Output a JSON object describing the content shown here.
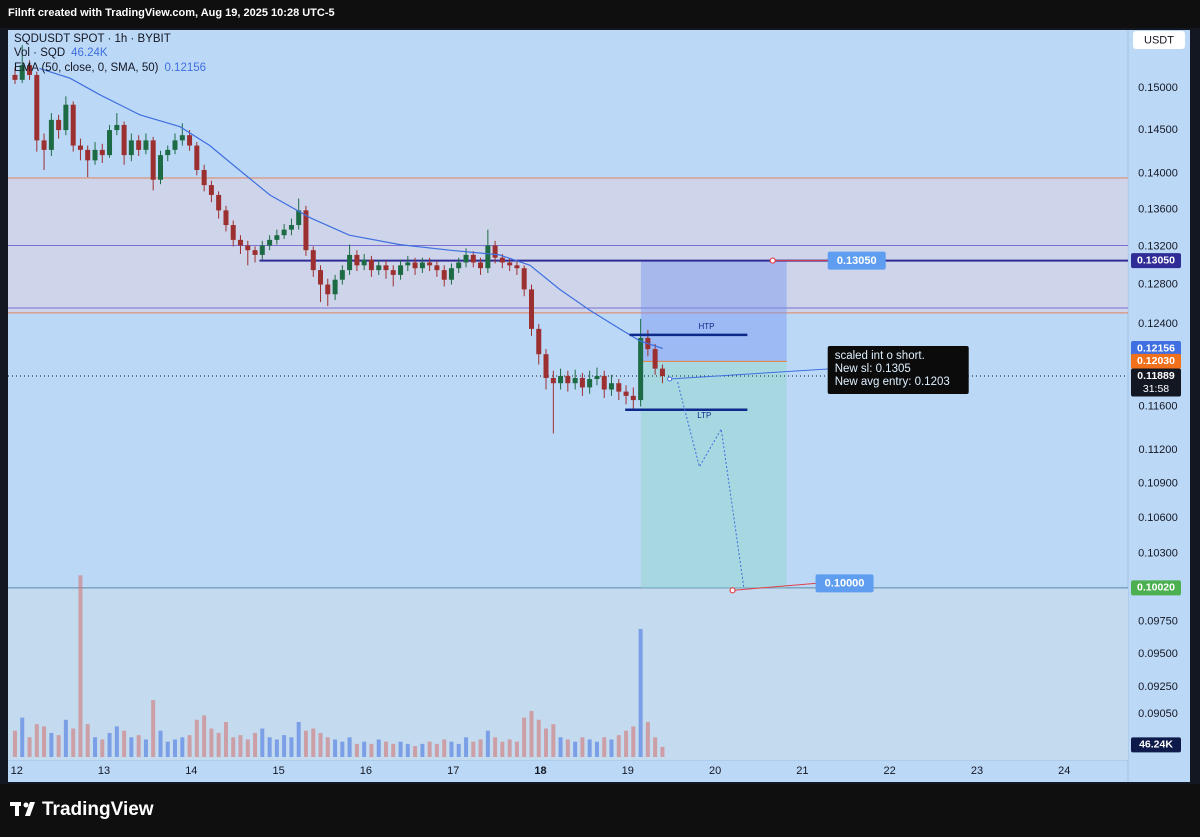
{
  "header": {
    "text": "Filnft created with TradingView.com, Aug 19, 2025 10:28 UTC-5"
  },
  "footer": {
    "brand": "TradingView"
  },
  "chart_data": {
    "type": "candlestick",
    "symbol": "SQDUSDT SPOT · 1h · BYBIT",
    "currency": "USDT",
    "log_scale": true,
    "grid": false,
    "up_color": "#1d6b45",
    "down_color": "#9c2f2f",
    "xlim": [
      11.9,
      24.73
    ],
    "xticks": [
      12,
      13,
      14,
      15,
      16,
      17,
      18,
      19,
      20,
      21,
      22,
      23,
      24
    ],
    "emphasized_xtick": 18,
    "ylim": [
      0.0872,
      0.1572
    ],
    "yticks": [
      {
        "value": 0.15,
        "label": "0.15000"
      },
      {
        "value": 0.145,
        "label": "0.14500"
      },
      {
        "value": 0.14,
        "label": "0.14000"
      },
      {
        "value": 0.136,
        "label": "0.13600"
      },
      {
        "value": 0.132,
        "label": "0.13200"
      },
      {
        "value": 0.128,
        "label": "0.12800"
      },
      {
        "value": 0.124,
        "label": "0.12400"
      },
      {
        "value": 0.116,
        "label": "0.11600"
      },
      {
        "value": 0.112,
        "label": "0.11200"
      },
      {
        "value": 0.109,
        "label": "0.10900"
      },
      {
        "value": 0.106,
        "label": "0.10600"
      },
      {
        "value": 0.103,
        "label": "0.10300"
      },
      {
        "value": 0.0975,
        "label": "0.09750"
      },
      {
        "value": 0.095,
        "label": "0.09500"
      },
      {
        "value": 0.0925,
        "label": "0.09250"
      },
      {
        "value": 0.0905,
        "label": "0.09050"
      }
    ],
    "x": [
      11.98,
      12.063,
      12.147,
      12.23,
      12.313,
      12.397,
      12.48,
      12.563,
      12.647,
      12.73,
      12.813,
      12.897,
      12.98,
      13.063,
      13.147,
      13.23,
      13.313,
      13.397,
      13.48,
      13.563,
      13.647,
      13.73,
      13.813,
      13.897,
      13.98,
      14.063,
      14.147,
      14.23,
      14.313,
      14.397,
      14.48,
      14.563,
      14.647,
      14.73,
      14.813,
      14.897,
      14.98,
      15.063,
      15.147,
      15.23,
      15.313,
      15.397,
      15.48,
      15.563,
      15.647,
      15.73,
      15.813,
      15.897,
      15.98,
      16.063,
      16.147,
      16.23,
      16.313,
      16.397,
      16.48,
      16.563,
      16.647,
      16.73,
      16.813,
      16.897,
      16.98,
      17.063,
      17.147,
      17.23,
      17.313,
      17.397,
      17.48,
      17.563,
      17.647,
      17.73,
      17.813,
      17.897,
      17.98,
      18.063,
      18.147,
      18.23,
      18.313,
      18.397,
      18.48,
      18.563,
      18.647,
      18.73,
      18.813,
      18.897,
      18.98,
      19.063,
      19.147,
      19.23,
      19.313,
      19.397
    ],
    "ohlc": [
      [
        0.1516,
        0.1525,
        0.1505,
        0.151
      ],
      [
        0.151,
        0.1553,
        0.1506,
        0.1528
      ],
      [
        0.1528,
        0.1534,
        0.151,
        0.1516
      ],
      [
        0.1516,
        0.152,
        0.1425,
        0.1438
      ],
      [
        0.1438,
        0.1446,
        0.1404,
        0.1427
      ],
      [
        0.1427,
        0.147,
        0.142,
        0.1462
      ],
      [
        0.1462,
        0.1468,
        0.144,
        0.145
      ],
      [
        0.145,
        0.149,
        0.1444,
        0.148
      ],
      [
        0.148,
        0.1484,
        0.1425,
        0.1432
      ],
      [
        0.1432,
        0.144,
        0.1415,
        0.1427
      ],
      [
        0.1427,
        0.1432,
        0.1396,
        0.1415
      ],
      [
        0.1415,
        0.1436,
        0.141,
        0.1427
      ],
      [
        0.1427,
        0.1434,
        0.1412,
        0.1421
      ],
      [
        0.1421,
        0.1456,
        0.1418,
        0.145
      ],
      [
        0.145,
        0.147,
        0.1444,
        0.1456
      ],
      [
        0.1456,
        0.146,
        0.141,
        0.1421
      ],
      [
        0.1421,
        0.1446,
        0.1414,
        0.1438
      ],
      [
        0.1438,
        0.1444,
        0.142,
        0.1427
      ],
      [
        0.1427,
        0.1446,
        0.1422,
        0.1438
      ],
      [
        0.1438,
        0.1442,
        0.1381,
        0.1393
      ],
      [
        0.1393,
        0.1426,
        0.1388,
        0.1421
      ],
      [
        0.1421,
        0.1432,
        0.1414,
        0.1427
      ],
      [
        0.1427,
        0.1446,
        0.1422,
        0.1438
      ],
      [
        0.1438,
        0.1458,
        0.1432,
        0.1444
      ],
      [
        0.1444,
        0.145,
        0.1426,
        0.1432
      ],
      [
        0.1432,
        0.1436,
        0.1398,
        0.1404
      ],
      [
        0.1404,
        0.141,
        0.138,
        0.1387
      ],
      [
        0.1387,
        0.1392,
        0.1368,
        0.1376
      ],
      [
        0.1376,
        0.138,
        0.135,
        0.1359
      ],
      [
        0.1359,
        0.1364,
        0.1336,
        0.1343
      ],
      [
        0.1343,
        0.1348,
        0.132,
        0.1327
      ],
      [
        0.1327,
        0.1332,
        0.1312,
        0.1321
      ],
      [
        0.1321,
        0.1326,
        0.13,
        0.1316
      ],
      [
        0.1316,
        0.132,
        0.1303,
        0.1311
      ],
      [
        0.1311,
        0.1326,
        0.1306,
        0.1321
      ],
      [
        0.1321,
        0.1332,
        0.1316,
        0.1327
      ],
      [
        0.1327,
        0.1338,
        0.1322,
        0.1332
      ],
      [
        0.1332,
        0.1344,
        0.1328,
        0.1338
      ],
      [
        0.1338,
        0.135,
        0.1332,
        0.1343
      ],
      [
        0.1343,
        0.1372,
        0.1338,
        0.1359
      ],
      [
        0.1359,
        0.1364,
        0.131,
        0.1316
      ],
      [
        0.1316,
        0.132,
        0.1288,
        0.1295
      ],
      [
        0.1295,
        0.13,
        0.1262,
        0.128
      ],
      [
        0.128,
        0.1286,
        0.1258,
        0.127
      ],
      [
        0.127,
        0.129,
        0.1264,
        0.1285
      ],
      [
        0.1285,
        0.13,
        0.128,
        0.1295
      ],
      [
        0.1295,
        0.1322,
        0.129,
        0.1311
      ],
      [
        0.1311,
        0.1316,
        0.1294,
        0.13
      ],
      [
        0.13,
        0.1312,
        0.1295,
        0.1306
      ],
      [
        0.1306,
        0.131,
        0.1288,
        0.1295
      ],
      [
        0.1295,
        0.1306,
        0.129,
        0.13
      ],
      [
        0.13,
        0.1305,
        0.1286,
        0.1295
      ],
      [
        0.1295,
        0.13,
        0.1278,
        0.129
      ],
      [
        0.129,
        0.1306,
        0.1285,
        0.13
      ],
      [
        0.13,
        0.131,
        0.1294,
        0.1303
      ],
      [
        0.1303,
        0.1308,
        0.129,
        0.1297
      ],
      [
        0.1297,
        0.1308,
        0.1292,
        0.1303
      ],
      [
        0.1303,
        0.1308,
        0.1294,
        0.13
      ],
      [
        0.13,
        0.1305,
        0.1288,
        0.1295
      ],
      [
        0.1295,
        0.13,
        0.1278,
        0.1285
      ],
      [
        0.1285,
        0.1302,
        0.128,
        0.1297
      ],
      [
        0.1297,
        0.1308,
        0.1292,
        0.1303
      ],
      [
        0.1303,
        0.1318,
        0.1298,
        0.1311
      ],
      [
        0.1311,
        0.1315,
        0.1298,
        0.1303
      ],
      [
        0.1303,
        0.1308,
        0.129,
        0.1297
      ],
      [
        0.1297,
        0.1338,
        0.1292,
        0.1321
      ],
      [
        0.1321,
        0.1326,
        0.1302,
        0.1308
      ],
      [
        0.1308,
        0.1312,
        0.1297,
        0.1303
      ],
      [
        0.1303,
        0.1308,
        0.1294,
        0.13
      ],
      [
        0.13,
        0.1305,
        0.129,
        0.1297
      ],
      [
        0.1297,
        0.13,
        0.1268,
        0.1275
      ],
      [
        0.1275,
        0.128,
        0.1228,
        0.1235
      ],
      [
        0.1235,
        0.124,
        0.12,
        0.121
      ],
      [
        0.121,
        0.1215,
        0.1176,
        0.1187
      ],
      [
        0.1187,
        0.1194,
        0.1135,
        0.1182
      ],
      [
        0.1182,
        0.1196,
        0.1176,
        0.1189
      ],
      [
        0.1189,
        0.1194,
        0.1174,
        0.1182
      ],
      [
        0.1182,
        0.1195,
        0.1176,
        0.1187
      ],
      [
        0.1187,
        0.1192,
        0.117,
        0.1178
      ],
      [
        0.1178,
        0.1194,
        0.1172,
        0.1186
      ],
      [
        0.1186,
        0.1197,
        0.118,
        0.1189
      ],
      [
        0.1189,
        0.1194,
        0.1168,
        0.1176
      ],
      [
        0.1176,
        0.119,
        0.117,
        0.1182
      ],
      [
        0.1182,
        0.1186,
        0.1166,
        0.1174
      ],
      [
        0.1174,
        0.118,
        0.1162,
        0.117
      ],
      [
        0.117,
        0.1178,
        0.1158,
        0.1166
      ],
      [
        0.1166,
        0.1245,
        0.116,
        0.1226
      ],
      [
        0.1226,
        0.1234,
        0.1208,
        0.1215
      ],
      [
        0.1215,
        0.122,
        0.119,
        0.1196
      ],
      [
        0.1196,
        0.12,
        0.1182,
        0.11889
      ]
    ],
    "ema": {
      "name": "EMA (50, close, 0, SMA, 50)",
      "color": "#3f6fe0",
      "x": [
        12.26,
        12.61,
        12.95,
        13.41,
        13.87,
        14.21,
        14.55,
        14.9,
        15.36,
        15.81,
        16.39,
        16.96,
        17.53,
        17.88,
        18.22,
        18.56,
        18.91,
        19.14,
        19.4
      ],
      "values": [
        0.1524,
        0.1512,
        0.1492,
        0.1468,
        0.1454,
        0.1432,
        0.1404,
        0.1376,
        0.1351,
        0.1332,
        0.1322,
        0.1316,
        0.1311,
        0.13,
        0.1275,
        0.1254,
        0.1235,
        0.1223,
        0.12156
      ]
    },
    "volume": {
      "name": "Vol · SQD",
      "last_label": "46.24K",
      "lim": [
        0,
        900
      ],
      "values": [
        120,
        180,
        90,
        150,
        140,
        110,
        100,
        170,
        130,
        830,
        150,
        90,
        80,
        110,
        140,
        120,
        90,
        100,
        80,
        260,
        120,
        70,
        80,
        90,
        100,
        170,
        190,
        130,
        110,
        160,
        90,
        100,
        80,
        110,
        130,
        90,
        80,
        100,
        90,
        160,
        120,
        130,
        110,
        90,
        80,
        70,
        90,
        60,
        70,
        60,
        80,
        70,
        60,
        70,
        60,
        50,
        60,
        70,
        60,
        80,
        70,
        60,
        90,
        70,
        80,
        120,
        90,
        70,
        80,
        70,
        180,
        210,
        170,
        130,
        150,
        90,
        80,
        70,
        90,
        80,
        70,
        90,
        80,
        100,
        120,
        140,
        585,
        160,
        90,
        46.24
      ]
    },
    "levels": [
      {
        "value": 0.1395,
        "color": "#e0825c"
      },
      {
        "value": 0.1321,
        "color": "#7b6fd2"
      },
      {
        "value": 0.1256,
        "color": "#7b6fd2"
      },
      {
        "value": 0.1251,
        "color": "#e0825c"
      }
    ],
    "key_level": {
      "value": 0.1305,
      "from": 14.78,
      "color": "#2f2c96"
    },
    "target_line": {
      "value": 0.1002,
      "color": "#5a8aa8"
    },
    "position": {
      "x0": 19.15,
      "x1": 20.82,
      "stop": 0.1305,
      "entry": 0.1203,
      "target": 0.1002,
      "risk_color": "rgba(120,150,240,0.45)",
      "reward_color": "rgba(150,215,205,0.55)",
      "entry_color": "#e8803a"
    },
    "bands": [
      {
        "label": "HTP",
        "value": 0.1229,
        "x0": 19.02,
        "x1": 20.37
      },
      {
        "label": "LTP",
        "value": 0.1157,
        "x0": 18.97,
        "x1": 20.37
      }
    ],
    "band_color": "#0d2a8a",
    "callouts": [
      {
        "label": "0.13050",
        "value": 0.1305,
        "x": 20.66
      },
      {
        "label": "0.10000",
        "value": 0.1,
        "x": 20.2
      }
    ],
    "note": {
      "x": 19.48,
      "value": 0.1186,
      "lines": [
        "scaled int o short.",
        "New sl: 0.1305",
        "New avg entry: 0.1203"
      ]
    },
    "projection": {
      "x": [
        19.57,
        19.82,
        20.07,
        20.33
      ],
      "values": [
        0.1183,
        0.1105,
        0.1139,
        0.1002
      ],
      "color": "#3f6fe0"
    },
    "price_tags": [
      {
        "value": 0.1305,
        "label": "0.13050",
        "color": "#2f2c96"
      },
      {
        "value": 0.12156,
        "label": "0.12156",
        "color": "#3f6fe0"
      },
      {
        "value": 0.1203,
        "label": "0.12030",
        "color": "#f0701c"
      },
      {
        "value": 0.11889,
        "label": "0.11889",
        "sub": "31:58",
        "color": "#131722",
        "dotted_line": true
      },
      {
        "value": 0.1002,
        "label": "0.10020",
        "color": "#4caf50"
      }
    ],
    "volume_tag_color": "#0e1a4a"
  }
}
